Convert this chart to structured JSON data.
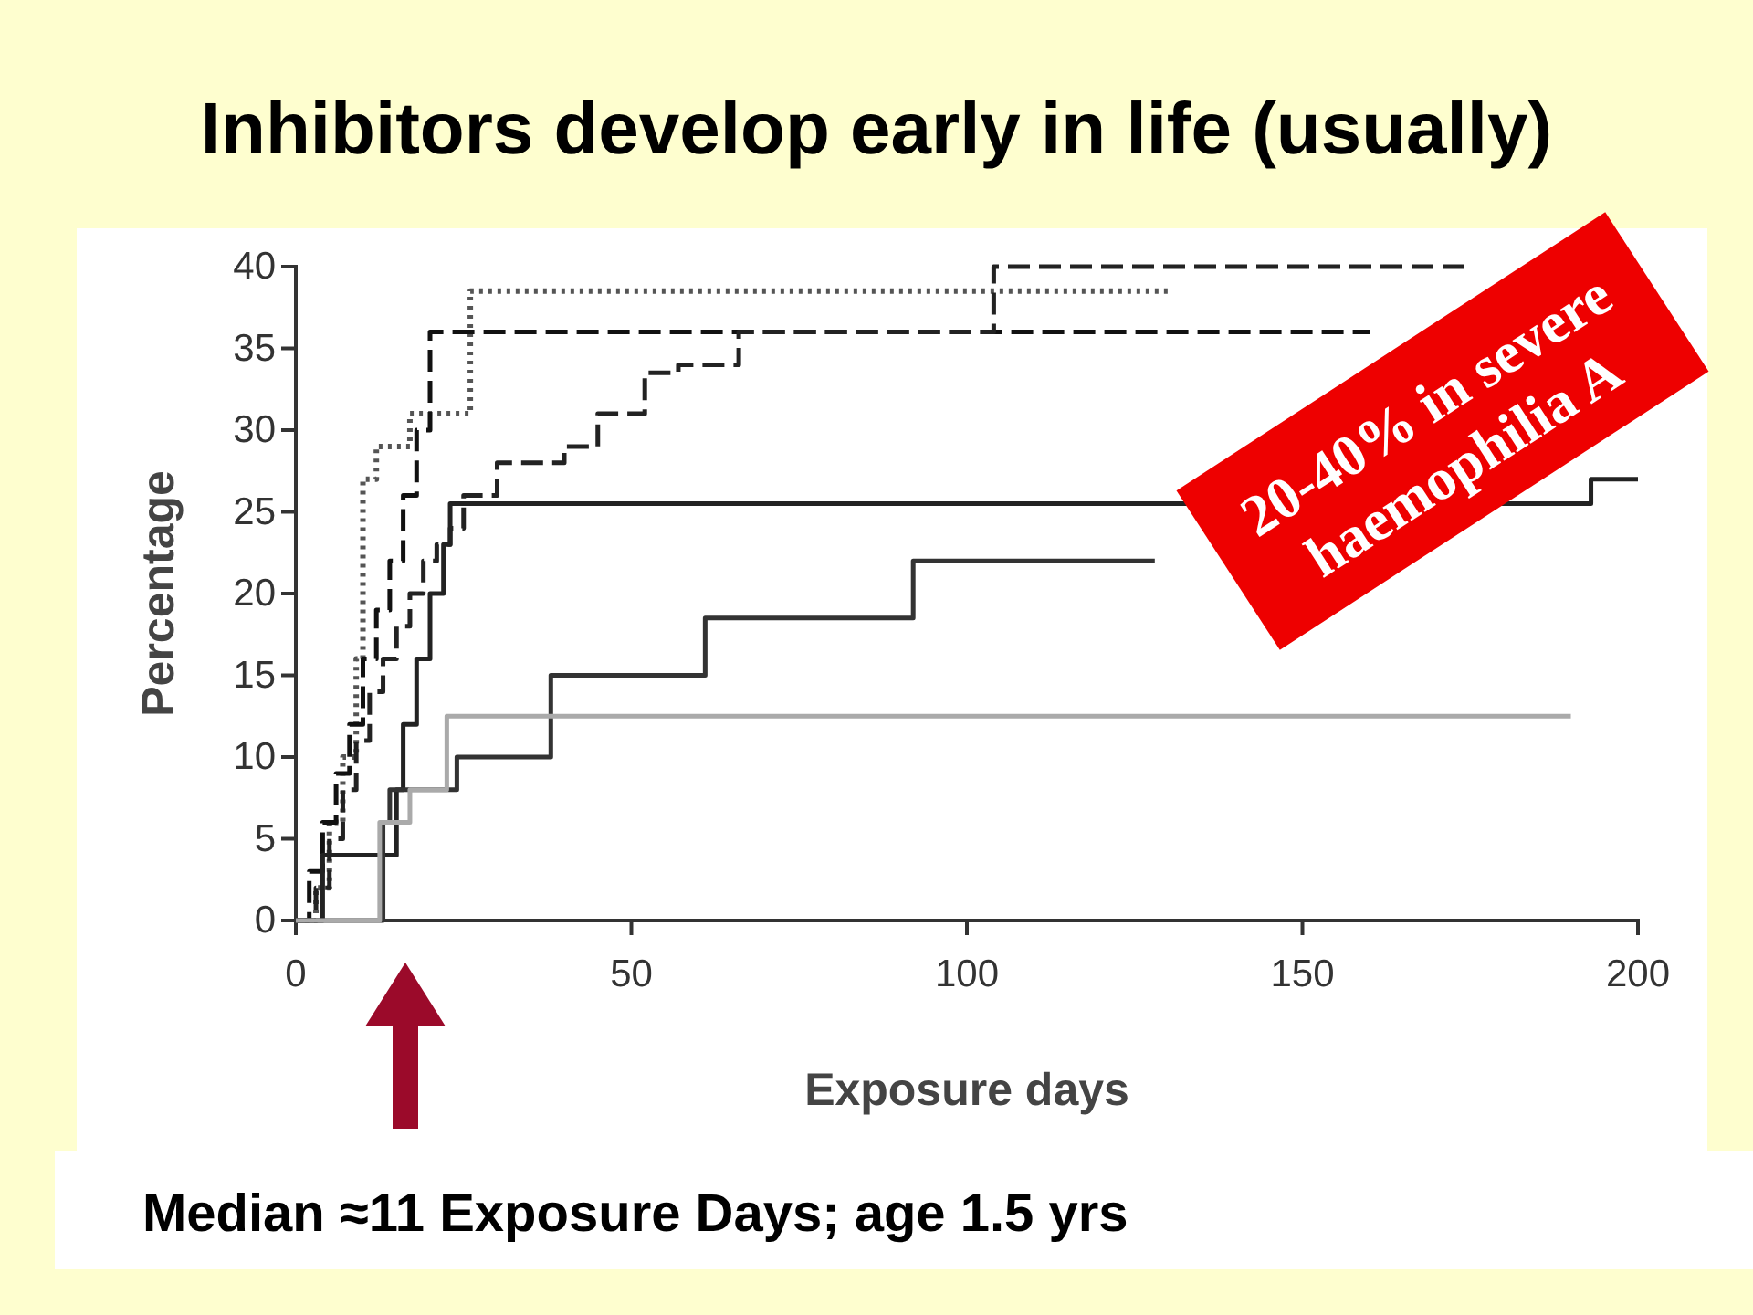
{
  "chart_data": {
    "type": "step",
    "title": "Inhibitors develop early in life (usually)",
    "xlabel": "Exposure days",
    "ylabel": "Percentage",
    "xlim": [
      0,
      200
    ],
    "ylim": [
      0,
      40
    ],
    "xticks": [
      0,
      50,
      100,
      150,
      200
    ],
    "yticks": [
      0,
      5,
      10,
      15,
      20,
      25,
      30,
      35,
      40
    ],
    "grid": false,
    "series": [
      {
        "color": "#555555",
        "line_style": "dotted",
        "x": [
          0,
          3,
          5,
          7,
          9,
          10,
          12,
          17,
          26,
          130
        ],
        "values": [
          0,
          2,
          6,
          10,
          16,
          27,
          29,
          31,
          38.5,
          38.5
        ]
      },
      {
        "color": "#111111",
        "line_style": "dashed",
        "x": [
          0,
          2,
          4,
          6,
          8,
          10,
          12,
          14,
          16,
          18,
          20,
          160
        ],
        "values": [
          0,
          3,
          6,
          9,
          12,
          16,
          19,
          22,
          26,
          30,
          36,
          36
        ]
      },
      {
        "color": "#222222",
        "line_style": "dashed",
        "x": [
          0,
          3,
          5,
          7,
          9,
          11,
          13,
          15,
          17,
          19,
          21,
          23,
          25,
          30,
          40,
          45,
          52,
          57,
          62,
          66,
          104,
          175
        ],
        "values": [
          0,
          2,
          5,
          8,
          11,
          14,
          16,
          18,
          20,
          22,
          23,
          24,
          26,
          28,
          29,
          31,
          33.5,
          34,
          34,
          36,
          40,
          40
        ]
      },
      {
        "color": "#222222",
        "line_style": "solid",
        "x": [
          0,
          4,
          15,
          16,
          18,
          20,
          22,
          23,
          38,
          193,
          200
        ],
        "values": [
          0,
          4,
          8,
          12,
          16,
          20,
          23,
          25.5,
          25.5,
          27,
          27
        ]
      },
      {
        "color": "#333333",
        "line_style": "solid",
        "x": [
          0,
          13,
          14,
          18,
          24,
          38,
          61,
          92,
          128
        ],
        "values": [
          0,
          6,
          8,
          8,
          10,
          15,
          18.5,
          22,
          22
        ]
      },
      {
        "color": "#aaaaaa",
        "line_style": "solid",
        "x": [
          0,
          12.5,
          15,
          17,
          22.5,
          190
        ],
        "values": [
          0,
          6,
          6,
          8,
          12.5,
          12.5
        ]
      }
    ],
    "annotations": [
      "20-40% in severe haemophilia A",
      "Median ≈11 Exposure Days; age 1.5 yrs"
    ]
  }
}
